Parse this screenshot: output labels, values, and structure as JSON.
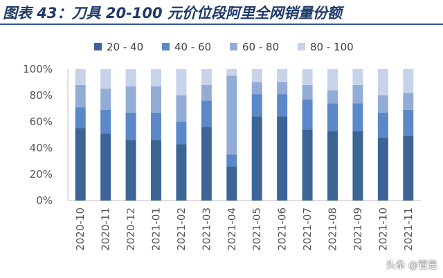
{
  "header": {
    "title": "图表 43：刀具 20-100 元价位段阿里全网销量份额"
  },
  "watermark": "头条 @管是",
  "chart_data": {
    "type": "bar",
    "stacked": true,
    "categories": [
      "2020-10",
      "2020-11",
      "2020-12",
      "2021-01",
      "2021-02",
      "2021-03",
      "2021-04",
      "2021-05",
      "2021-06",
      "2021-07",
      "2021-08",
      "2021-09",
      "2021-10",
      "2021-11"
    ],
    "series": [
      {
        "name": "20 - 40",
        "color": "#3c6596",
        "values": [
          55,
          51,
          46,
          46,
          43,
          56,
          26,
          64,
          64,
          54,
          53,
          53,
          48,
          49
        ]
      },
      {
        "name": "40 - 60",
        "color": "#5b88c8",
        "values": [
          16,
          18,
          21,
          21,
          17,
          20,
          9,
          17,
          17,
          23,
          21,
          21,
          19,
          20
        ]
      },
      {
        "name": "60 - 80",
        "color": "#93acd6",
        "values": [
          17,
          16,
          20,
          20,
          20,
          12,
          60,
          9,
          9,
          11,
          10,
          14,
          13,
          13
        ]
      },
      {
        "name": "80 - 100",
        "color": "#c7d3e9",
        "values": [
          12,
          15,
          13,
          13,
          20,
          12,
          5,
          10,
          10,
          12,
          16,
          12,
          20,
          18
        ]
      }
    ],
    "yticks": [
      "0%",
      "20%",
      "40%",
      "60%",
      "80%",
      "100%"
    ],
    "ylim": [
      0,
      100
    ],
    "legend": "top",
    "grid": false,
    "xlabel": "",
    "ylabel": ""
  }
}
